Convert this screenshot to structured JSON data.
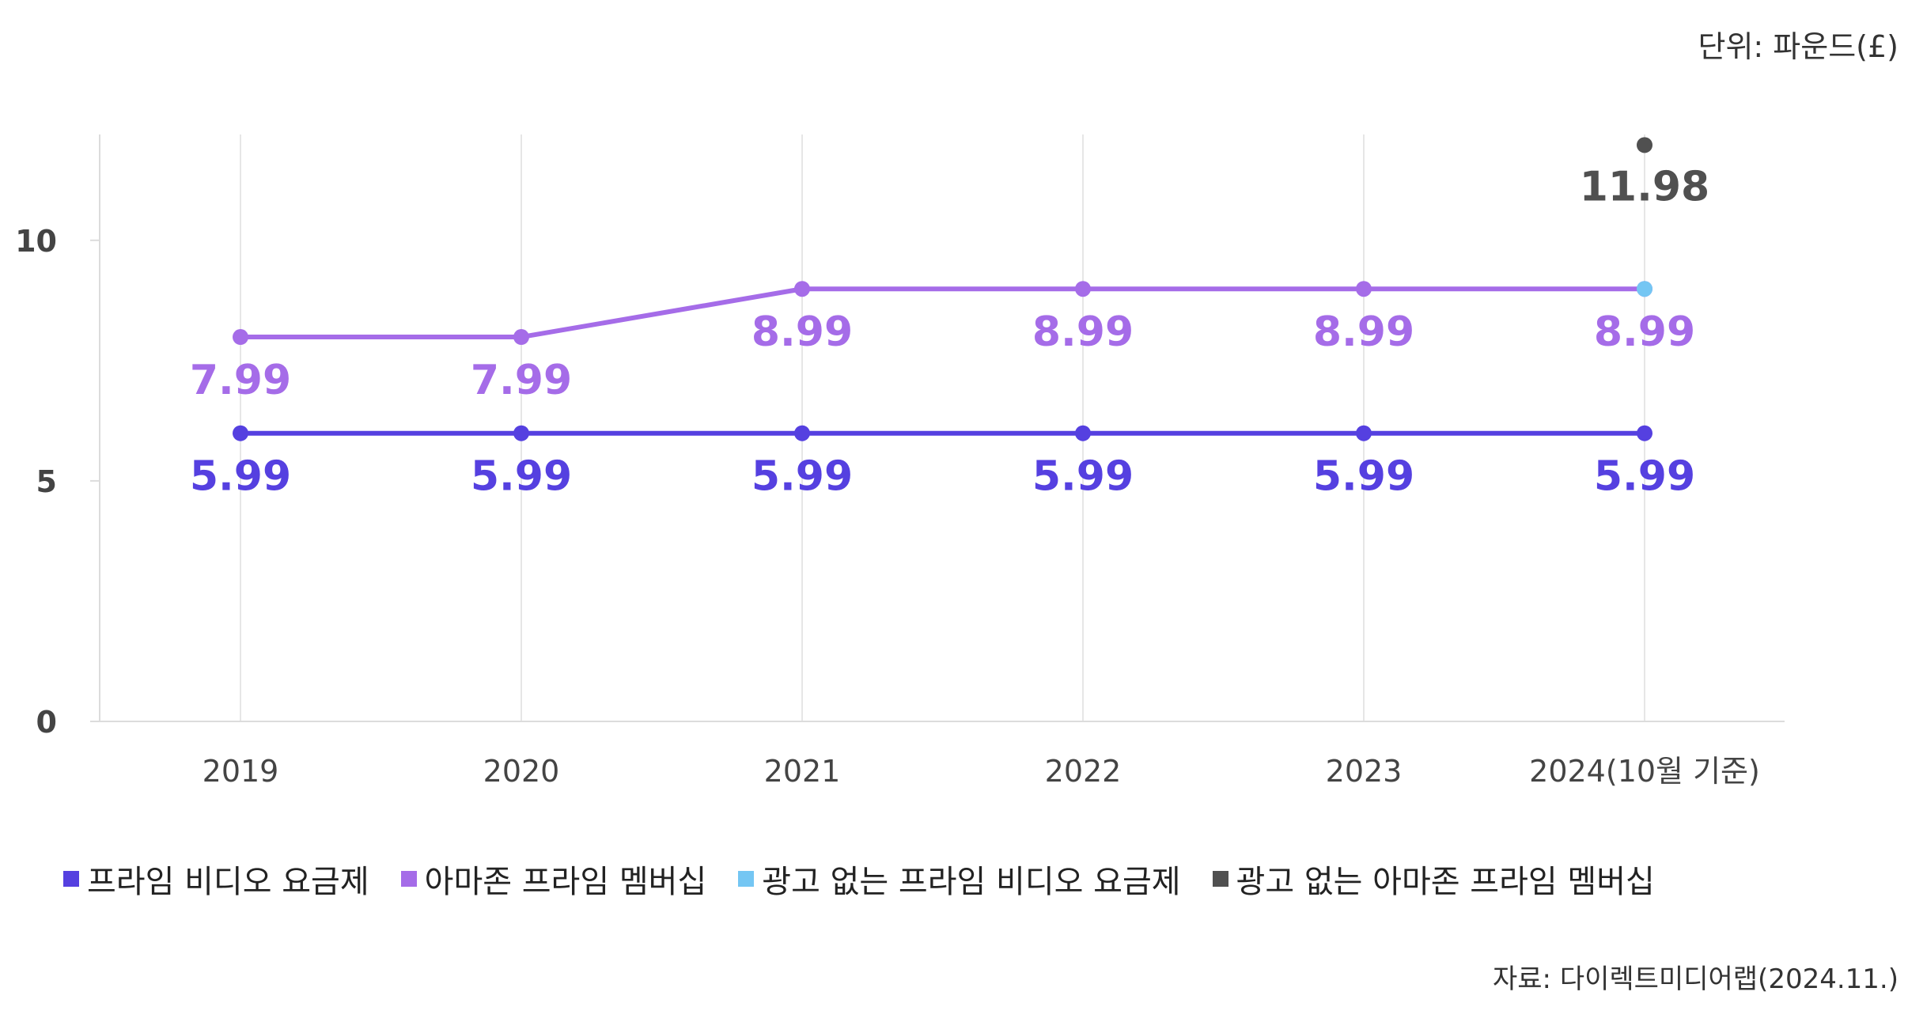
{
  "unit_label": "단위: 파운드(£)",
  "source_label": "자료: 다이렉트미디어랩(2024.11.)",
  "legend": [
    {
      "label": "프라임 비디오 요금제",
      "color": "#5540e0"
    },
    {
      "label": "아마존 프라임 멤버십",
      "color": "#a56ce8"
    },
    {
      "label": "광고 없는 프라임 비디오 요금제",
      "color": "#74c6f3"
    },
    {
      "label": "광고 없는 아마존 프라임 멤버십",
      "color": "#505050"
    }
  ],
  "chart_data": {
    "type": "line",
    "categories": [
      "2019",
      "2020",
      "2021",
      "2022",
      "2023",
      "2024(10월 기준)"
    ],
    "ylim": [
      0,
      12.2
    ],
    "yticks": [
      0,
      5,
      10
    ],
    "grid": "vertical",
    "legend_position": "bottom",
    "series": [
      {
        "name": "프라임 비디오 요금제",
        "color": "#5540e0",
        "values": [
          5.99,
          5.99,
          5.99,
          5.99,
          5.99,
          5.99
        ],
        "labels": [
          "5.99",
          "5.99",
          "5.99",
          "5.99",
          "5.99",
          "5.99"
        ]
      },
      {
        "name": "아마존 프라임 멤버십",
        "color": "#a56ce8",
        "values": [
          7.99,
          7.99,
          8.99,
          8.99,
          8.99,
          8.99
        ],
        "labels": [
          "7.99",
          "7.99",
          "8.99",
          "8.99",
          "8.99",
          "8.99"
        ]
      },
      {
        "name": "광고 없는 프라임 비디오 요금제",
        "color": "#74c6f3",
        "values": [
          null,
          null,
          null,
          null,
          null,
          8.99
        ],
        "labels": [
          null,
          null,
          null,
          null,
          null,
          null
        ]
      },
      {
        "name": "광고 없는 아마존 프라임 멤버십",
        "color": "#505050",
        "values": [
          null,
          null,
          null,
          null,
          null,
          11.98
        ],
        "labels": [
          null,
          null,
          null,
          null,
          null,
          "11.98"
        ]
      }
    ]
  }
}
